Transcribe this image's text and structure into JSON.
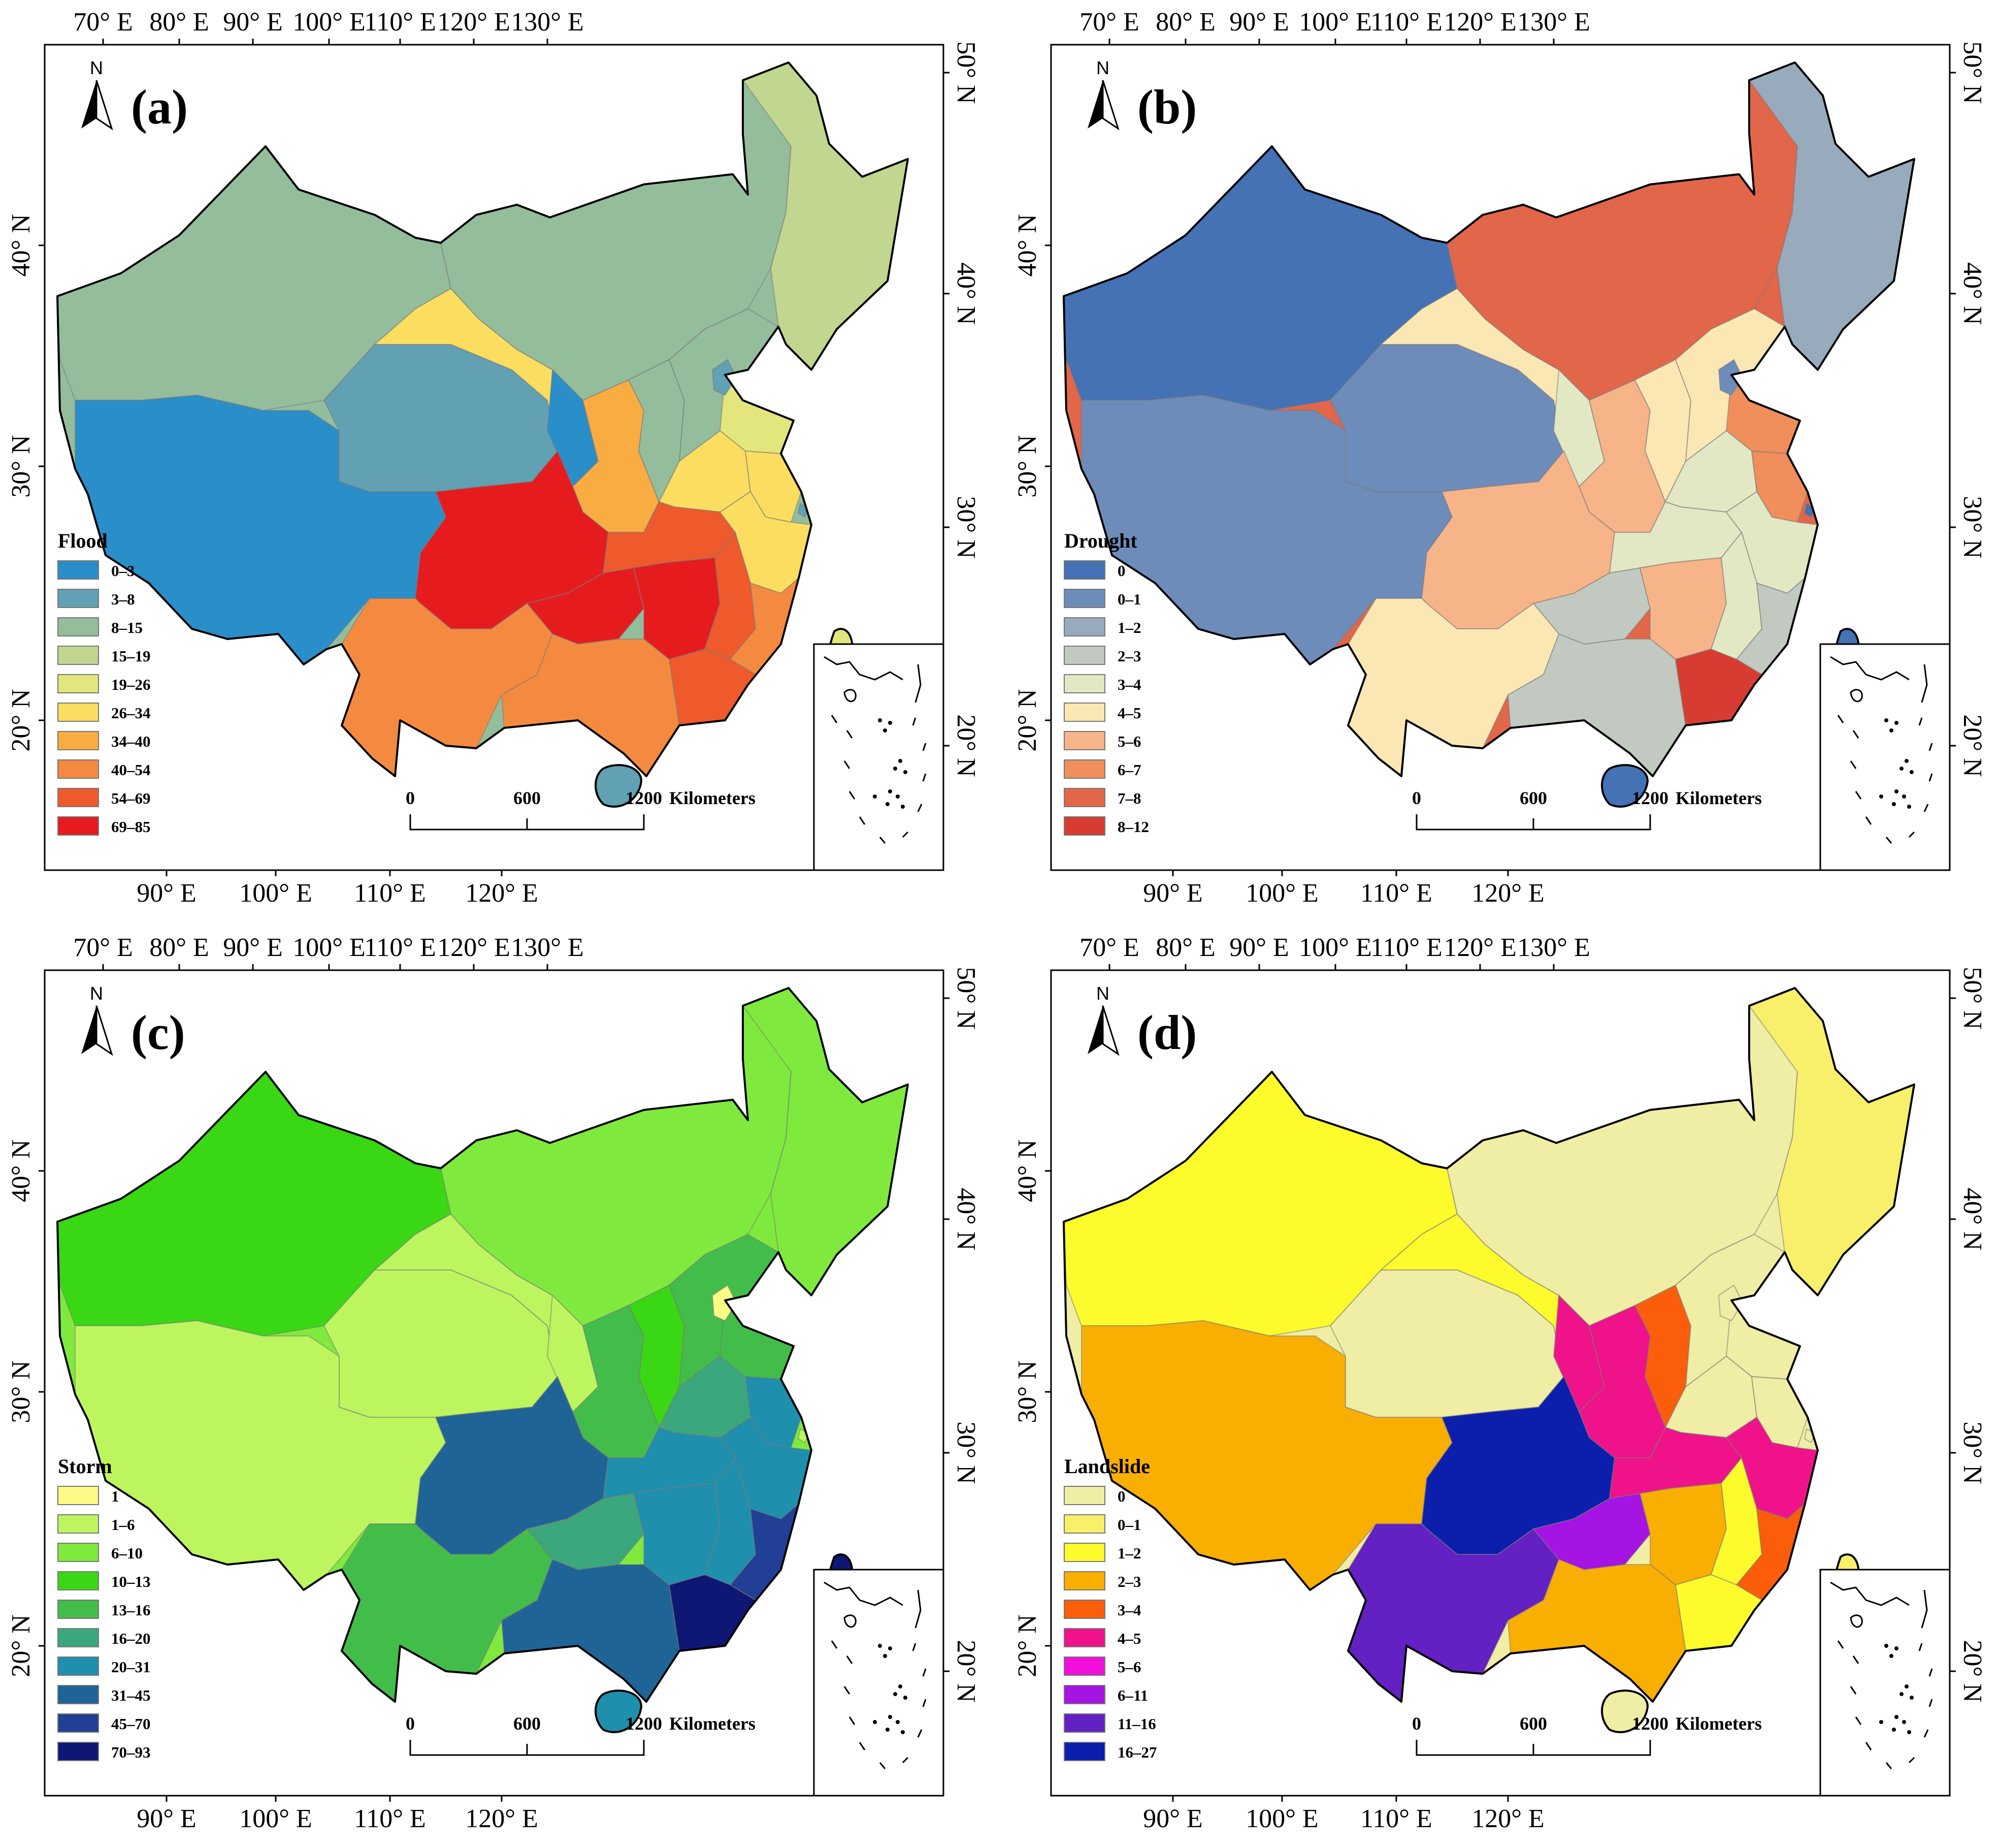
{
  "figure": {
    "panels": [
      {
        "id": "a",
        "label": "(a)",
        "top_lon_labels": [
          "70° E",
          "80° E",
          "90° E",
          "100° E",
          "110° E",
          "120° E",
          "130° E"
        ],
        "bottom_lon_labels": [
          "90° E",
          "100° E",
          "110° E",
          "120° E"
        ],
        "left_lat_labels": [
          "40° N",
          "30° N",
          "20° N"
        ],
        "right_lat_labels": [
          "50° N",
          "40° N",
          "30° N",
          "20° N"
        ],
        "north_label": "N",
        "scale": {
          "labels": [
            "0",
            "600",
            "1200"
          ],
          "unit": "Kilometers"
        },
        "legend": {
          "title": "Flood",
          "classes": [
            {
              "label": "0–3",
              "color": "#2a8ec9"
            },
            {
              "label": "3–8",
              "color": "#62a0b4"
            },
            {
              "label": "8–15",
              "color": "#94bd9c"
            },
            {
              "label": "15–19",
              "color": "#c1d68f"
            },
            {
              "label": "19–26",
              "color": "#e3e67c"
            },
            {
              "label": "26–34",
              "color": "#fbde5f"
            },
            {
              "label": "34–40",
              "color": "#f9ac42"
            },
            {
              "label": "40–54",
              "color": "#f48a40"
            },
            {
              "label": "54–69",
              "color": "#ef5a2c"
            },
            {
              "label": "69–85",
              "color": "#e61b1e"
            }
          ]
        }
      },
      {
        "id": "b",
        "label": "(b)",
        "top_lon_labels": [
          "70° E",
          "80° E",
          "90° E",
          "100° E",
          "110° E",
          "120° E",
          "130° E"
        ],
        "bottom_lon_labels": [
          "90° E",
          "100° E",
          "110° E",
          "120° E"
        ],
        "left_lat_labels": [
          "40° N",
          "30° N",
          "20° N"
        ],
        "right_lat_labels": [
          "50° N",
          "40° N",
          "30° N",
          "20° N"
        ],
        "north_label": "N",
        "scale": {
          "labels": [
            "0",
            "600",
            "1200"
          ],
          "unit": "Kilometers"
        },
        "legend": {
          "title": "Drought",
          "classes": [
            {
              "label": "0",
              "color": "#4472b4"
            },
            {
              "label": "0–1",
              "color": "#6e8cba"
            },
            {
              "label": "1–2",
              "color": "#98abbd"
            },
            {
              "label": "2–3",
              "color": "#c2c9c0"
            },
            {
              "label": "3–4",
              "color": "#e3e8c4"
            },
            {
              "label": "4–5",
              "color": "#fbe7b4"
            },
            {
              "label": "5–6",
              "color": "#f6b488"
            },
            {
              "label": "6–7",
              "color": "#f08e5c"
            },
            {
              "label": "7–8",
              "color": "#e2664a"
            },
            {
              "label": "8–12",
              "color": "#d83b32"
            }
          ]
        }
      },
      {
        "id": "c",
        "label": "(c)",
        "top_lon_labels": [
          "70° E",
          "80° E",
          "90° E",
          "100° E",
          "110° E",
          "120° E",
          "130° E"
        ],
        "bottom_lon_labels": [
          "90° E",
          "100° E",
          "110° E",
          "120° E"
        ],
        "left_lat_labels": [
          "40° N",
          "30° N",
          "20° N"
        ],
        "right_lat_labels": [
          "50° N",
          "40° N",
          "30° N",
          "20° N"
        ],
        "north_label": "N",
        "scale": {
          "labels": [
            "0",
            "600",
            "1200"
          ],
          "unit": "Kilometers"
        },
        "legend": {
          "title": "Storm",
          "classes": [
            {
              "label": "1",
              "color": "#fbfb86"
            },
            {
              "label": "1–6",
              "color": "#bdf55f"
            },
            {
              "label": "6–10",
              "color": "#7fea3d"
            },
            {
              "label": "10–13",
              "color": "#39d714"
            },
            {
              "label": "13–16",
              "color": "#43bd4a"
            },
            {
              "label": "16–20",
              "color": "#3aa87c"
            },
            {
              "label": "20–31",
              "color": "#1e8fad"
            },
            {
              "label": "31–45",
              "color": "#1f6496"
            },
            {
              "label": "45–70",
              "color": "#213f94"
            },
            {
              "label": "70–93",
              "color": "#0e1773"
            }
          ]
        }
      },
      {
        "id": "d",
        "label": "(d)",
        "top_lon_labels": [
          "70° E",
          "80° E",
          "90° E",
          "100° E",
          "110° E",
          "120° E",
          "130° E"
        ],
        "bottom_lon_labels": [
          "90° E",
          "100° E",
          "110° E",
          "120° E"
        ],
        "left_lat_labels": [
          "40° N",
          "30° N",
          "20° N"
        ],
        "right_lat_labels": [
          "50° N",
          "40° N",
          "30° N",
          "20° N"
        ],
        "north_label": "N",
        "scale": {
          "labels": [
            "0",
            "600",
            "1200"
          ],
          "unit": "Kilometers"
        },
        "legend": {
          "title": "Landslide",
          "classes": [
            {
              "label": "0",
              "color": "#f0eda4"
            },
            {
              "label": "0–1",
              "color": "#f8f06a"
            },
            {
              "label": "1–2",
              "color": "#fdfb2b"
            },
            {
              "label": "2–3",
              "color": "#f9ae02"
            },
            {
              "label": "3–4",
              "color": "#fb5d0a"
            },
            {
              "label": "4–5",
              "color": "#f0128a"
            },
            {
              "label": "5–6",
              "color": "#f20fdc"
            },
            {
              "label": "6–11",
              "color": "#a514e3"
            },
            {
              "label": "11–16",
              "color": "#6320c2"
            },
            {
              "label": "16–27",
              "color": "#0b1eac"
            }
          ]
        }
      }
    ]
  }
}
